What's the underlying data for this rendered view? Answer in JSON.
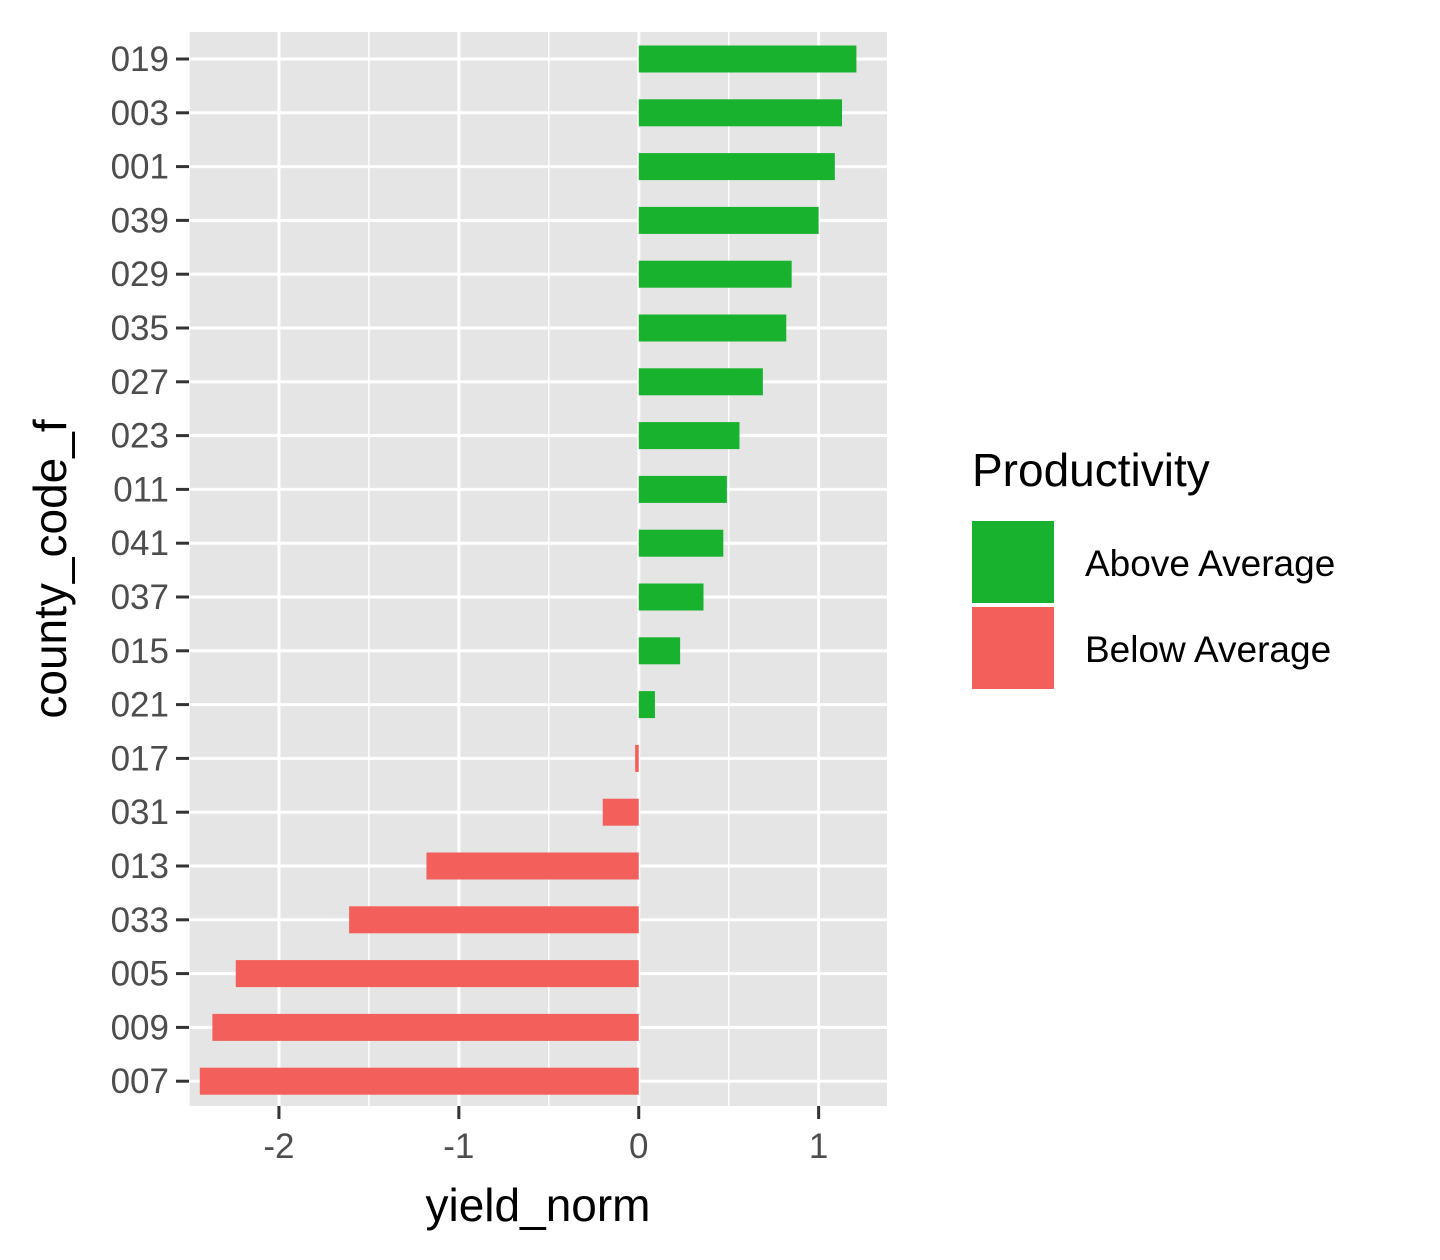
{
  "chart_data": {
    "type": "bar",
    "orientation": "horizontal",
    "xlabel": "yield_norm",
    "ylabel": "county_code_f",
    "xlim": [
      -2.5,
      1.38
    ],
    "x_ticks": [
      -2,
      -1,
      0,
      1
    ],
    "grid": true,
    "legend": {
      "title": "Productivity",
      "placement": "right",
      "entries": [
        {
          "label": "Above Average",
          "color": "#19b22f"
        },
        {
          "label": "Below Average",
          "color": "#f35f5b"
        }
      ]
    },
    "categories": [
      "019",
      "003",
      "001",
      "039",
      "029",
      "035",
      "027",
      "023",
      "011",
      "041",
      "037",
      "015",
      "021",
      "017",
      "031",
      "013",
      "033",
      "005",
      "009",
      "007"
    ],
    "values": [
      1.21,
      1.13,
      1.09,
      1.0,
      0.85,
      0.82,
      0.69,
      0.56,
      0.49,
      0.47,
      0.36,
      0.23,
      0.09,
      -0.02,
      -0.2,
      -1.18,
      -1.61,
      -2.24,
      -2.37,
      -2.44
    ],
    "groups": [
      "Above Average",
      "Above Average",
      "Above Average",
      "Above Average",
      "Above Average",
      "Above Average",
      "Above Average",
      "Above Average",
      "Above Average",
      "Above Average",
      "Above Average",
      "Above Average",
      "Above Average",
      "Below Average",
      "Below Average",
      "Below Average",
      "Below Average",
      "Below Average",
      "Below Average",
      "Below Average"
    ]
  },
  "colors": {
    "panel_background": "#e5e5e5",
    "grid_major": "#ffffff",
    "tick_mark": "#333333"
  }
}
